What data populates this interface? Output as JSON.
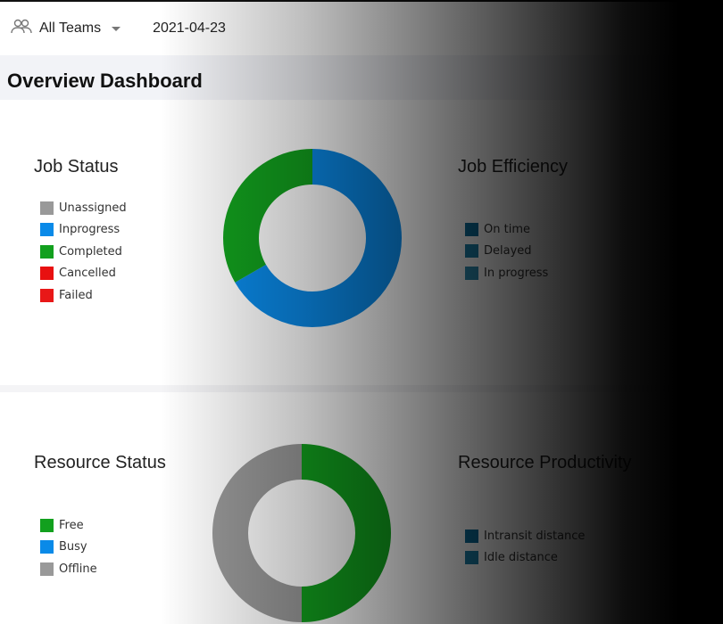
{
  "topbar": {
    "team_icon": "team-icon",
    "team_label": "All Teams",
    "date": "2021-04-23"
  },
  "page_title": "Overview Dashboard",
  "colors": {
    "unassigned": "#999999",
    "inprogress": "#0a8ae8",
    "completed": "#12a01e",
    "cancelled": "#e81010",
    "failed": "#e81818",
    "free": "#12a01e",
    "busy": "#0a8ae8",
    "offline": "#999999",
    "on_time": "#0b6c99",
    "delayed": "#1a7fa8",
    "in_progress_eff": "#2d8cb0"
  },
  "job_status": {
    "title": "Job Status",
    "legend": [
      "Unassigned",
      "Inprogress",
      "Completed",
      "Cancelled",
      "Failed"
    ],
    "chart_data": {
      "type": "pie",
      "donut": true,
      "categories": [
        "Inprogress",
        "Completed"
      ],
      "values": [
        66.7,
        33.3
      ]
    }
  },
  "job_efficiency": {
    "title": "Job Efficiency",
    "legend": [
      "On time",
      "Delayed",
      "In progress"
    ]
  },
  "resource_status": {
    "title": "Resource Status",
    "legend": [
      "Free",
      "Busy",
      "Offline"
    ],
    "chart_data": {
      "type": "pie",
      "donut": true,
      "categories": [
        "Free",
        "Offline"
      ],
      "values": [
        50,
        50
      ]
    }
  },
  "resource_productivity": {
    "title": "Resource Productivity",
    "legend": [
      "Intransit distance",
      "Idle distance"
    ]
  }
}
